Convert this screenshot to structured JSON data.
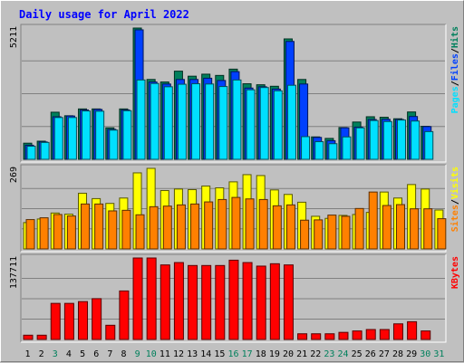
{
  "chart_data": {
    "type": "bar",
    "title": "Daily usage for April 2022",
    "categories": [
      "1",
      "2",
      "3",
      "4",
      "5",
      "6",
      "7",
      "8",
      "9",
      "10",
      "11",
      "12",
      "13",
      "14",
      "15",
      "16",
      "17",
      "18",
      "19",
      "20",
      "21",
      "22",
      "23",
      "24",
      "25",
      "26",
      "27",
      "28",
      "29",
      "30",
      "31"
    ],
    "weekend_days": [
      "3",
      "9",
      "10",
      "16",
      "17",
      "23",
      "24",
      "30",
      "31"
    ],
    "colors": {
      "hits": "#00805c",
      "files": "#0040ff",
      "pages": "#00e0ff",
      "visits": "#ffff00",
      "sites": "#ff8000",
      "kbytes": "#ff0000",
      "title": "#0000ff",
      "weekday_label": "#000000",
      "weekend_label": "#00805c"
    },
    "panels": [
      {
        "id": "requests",
        "ymax_label": "5211",
        "ymax": 5211,
        "right_label_parts": [
          {
            "text": "Pages",
            "color": "#00e0ff"
          },
          {
            "text": "/",
            "color": "#000000"
          },
          {
            "text": "Files",
            "color": "#0040ff"
          },
          {
            "text": "/",
            "color": "#000000"
          },
          {
            "text": "Hits",
            "color": "#00805c"
          }
        ],
        "series": [
          {
            "name": "Hits",
            "values": [
              640,
              720,
              1870,
              1730,
              2000,
              2000,
              1250,
              2000,
              5211,
              3170,
              3070,
              3500,
              3300,
              3380,
              3330,
              3580,
              3000,
              2960,
              2900,
              4780,
              3170,
              890,
              830,
              1260,
              1480,
              1690,
              1670,
              1610,
              1880,
              1310,
              0
            ]
          },
          {
            "name": "Files",
            "values": [
              560,
              690,
              1690,
              1720,
              1960,
              1980,
              1190,
              1960,
              5140,
              3070,
              2990,
              3170,
              3170,
              3220,
              3130,
              3480,
              2830,
              2880,
              2790,
              4680,
              2990,
              870,
              740,
              1250,
              1280,
              1580,
              1590,
              1580,
              1700,
              1300,
              0
            ]
          },
          {
            "name": "Pages",
            "values": [
              520,
              670,
              1660,
              1660,
              1920,
              1910,
              1160,
              1930,
              3150,
              3010,
              2880,
              2980,
              3000,
              2990,
              2890,
              3150,
              2760,
              2850,
              2720,
              2940,
              900,
              700,
              620,
              890,
              1250,
              1540,
              1500,
              1560,
              1520,
              1100,
              0
            ]
          }
        ]
      },
      {
        "id": "visitors",
        "ymax_label": "269",
        "ymax": 269,
        "right_label_parts": [
          {
            "text": "Sites",
            "color": "#ff8000"
          },
          {
            "text": "/",
            "color": "#000000"
          },
          {
            "text": "Visits",
            "color": "#ffff00"
          }
        ],
        "series": [
          {
            "name": "Visits",
            "values": [
              88,
              100,
              120,
              116,
              186,
              168,
              152,
              170,
              254,
              269,
              195,
              200,
              198,
              210,
              204,
              224,
              248,
              245,
              197,
              182,
              156,
              109,
              102,
              112,
              115,
              122,
              190,
              170,
              215,
              200,
              130
            ]
          },
          {
            "name": "Sites",
            "values": [
              98,
              104,
              115,
              110,
              150,
              150,
              127,
              129,
              114,
              141,
              143,
              147,
              150,
              157,
              165,
              172,
              167,
              165,
              144,
              147,
              96,
              97,
              113,
              109,
              135,
              190,
              145,
              148,
              134,
              134,
              101
            ]
          }
        ]
      },
      {
        "id": "traffic",
        "ymax_label": "137711",
        "ymax": 137711,
        "right_label_parts": [
          {
            "text": "KBytes",
            "color": "#ff0000"
          }
        ],
        "series": [
          {
            "name": "KBytes",
            "values": [
              7200,
              7200,
              61000,
              61000,
              64000,
              69000,
              24000,
              82000,
              137711,
              137711,
              126000,
              130000,
              125000,
              125000,
              125000,
              134000,
              130000,
              124000,
              128000,
              126000,
              9600,
              9600,
              9600,
              12000,
              14400,
              16800,
              16800,
              26400,
              30000,
              14400,
              0
            ]
          }
        ]
      }
    ]
  }
}
